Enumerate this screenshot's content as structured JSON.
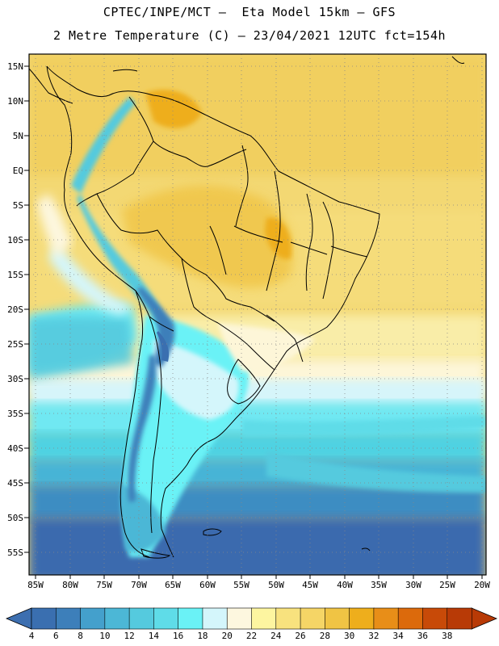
{
  "header": {
    "line1": "CPTEC/INPE/MCT –  Eta Model 15km – GFS",
    "line2": "2 Metre Temperature (C) – 23/04/2021 12UTC fct=154h"
  },
  "map": {
    "lat_labels": [
      "15N",
      "10N",
      "5N",
      "EQ",
      "5S",
      "10S",
      "15S",
      "20S",
      "25S",
      "30S",
      "35S",
      "40S",
      "45S",
      "50S",
      "55S"
    ],
    "lon_labels": [
      "85W",
      "80W",
      "75W",
      "70W",
      "65W",
      "60W",
      "55W",
      "50W",
      "45W",
      "40W",
      "35W",
      "30W",
      "25W",
      "20W"
    ]
  },
  "colorbar": {
    "labels": [
      "4",
      "6",
      "8",
      "10",
      "12",
      "14",
      "16",
      "18",
      "20",
      "22",
      "24",
      "26",
      "28",
      "30",
      "32",
      "34",
      "36",
      "38"
    ],
    "colors": [
      "#3a6fb0",
      "#3d7fba",
      "#44a0cc",
      "#4cb7d6",
      "#55cade",
      "#5fdce8",
      "#6af2f6",
      "#d4f6fb",
      "#fdf7df",
      "#fdf5a0",
      "#f8e27e",
      "#f5d566",
      "#f0c444",
      "#eeae1c",
      "#e88e18",
      "#dc6a0c",
      "#c84a08",
      "#b83a06"
    ],
    "left_arrow_color": "#3d6fb0",
    "right_arrow_color": "#b83a06"
  }
}
